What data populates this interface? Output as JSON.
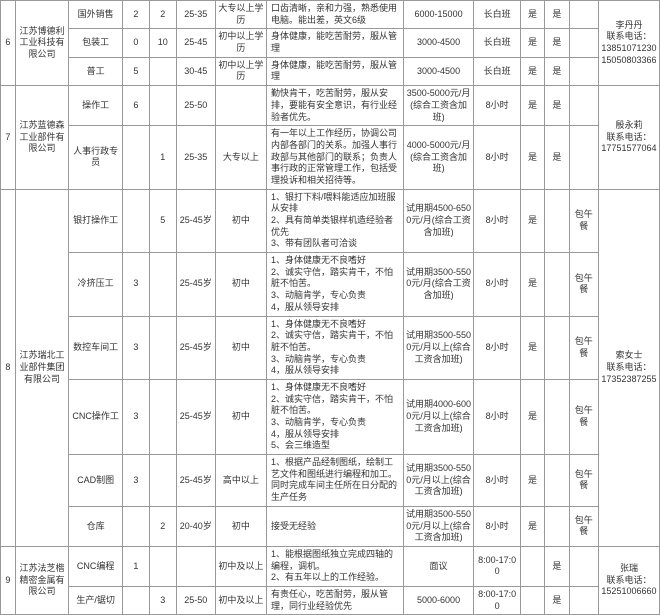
{
  "colors": {
    "border": "#999999",
    "bg": "#ffffff",
    "text": "#333333"
  },
  "companies": [
    {
      "idx": "6",
      "name": "江苏博德利工业科技有限公司",
      "contact": "李丹丹\n联系电话：\n13851071230\n15050803366",
      "rows": [
        {
          "job": "国外销售",
          "n1": "2",
          "n2": "2",
          "age": "25-35",
          "edu": "大专以上学历",
          "req": "口齿清晰，亲和力强，熟悉使用电脑。能出差，英文6级",
          "sal": "6000-15000",
          "shift": "长白班",
          "y1": "是",
          "y2": "是"
        },
        {
          "job": "包装工",
          "n1": "0",
          "n2": "10",
          "age": "25-45",
          "edu": "初中以上学历",
          "req": "身体健康，能吃苦耐劳，服从管理",
          "sal": "3000-4500",
          "shift": "长白班",
          "y1": "是",
          "y2": "是"
        },
        {
          "job": "普工",
          "n1": "5",
          "n2": "",
          "age": "30-45",
          "edu": "初中以上学历",
          "req": "身体健康，能吃苦耐劳，服从管理",
          "sal": "3000-4500",
          "shift": "长白班",
          "y1": "是",
          "y2": "是"
        }
      ]
    },
    {
      "idx": "7",
      "name": "江苏蓝德森工业部件有限公司",
      "contact": "殷永莉\n联系电话：\n17751577064",
      "rows": [
        {
          "job": "操作工",
          "n1": "6",
          "n2": "",
          "age": "25-50",
          "edu": "",
          "req": "勤快肯干，吃苦耐劳，服从安排，要能有安全意识，有行业经验者优先。",
          "sal": "3500-5000元/月(综合工资含加班)",
          "shift": "8小时",
          "y1": "是",
          "y2": "是"
        },
        {
          "job": "人事行政专员",
          "n1": "",
          "n2": "1",
          "age": "25-35",
          "edu": "大专以上",
          "req": "有一年以上工作经历，协调公司内部各部门的关系。加强人事行政部与其他部门的联系；负责人事行政的正常管理工作，包括受理投诉和相关招待等。",
          "sal": "4000-5000元/月(综合工资含加班)",
          "shift": "8小时",
          "y1": "是",
          "y2": "是"
        }
      ]
    },
    {
      "idx": "8",
      "name": "江苏瑞北工业部件集团有限公司",
      "contact": "索女士\n联系电话：\n17352387255",
      "rows": [
        {
          "job": "银打操作工",
          "n1": "",
          "n2": "5",
          "age": "25-45岁",
          "edu": "初中",
          "req": "1、银打下料/喂料能适应加班服从安排\n2、具有简单类银样机造经验者优先\n3、带有团队者可洽谈",
          "sal": "试用期4500-6500元/月(综合工资含加班)",
          "shift": "8小时",
          "y1": "是",
          "y2": "",
          "y3": "包午餐"
        },
        {
          "job": "冷挤压工",
          "n1": "3",
          "n2": "",
          "age": "25-45岁",
          "edu": "初中",
          "req": "1、身体健康无不良嗜好\n2、诚实守信，踏实肯干，不怕脏不怕苦。\n3、动脑肯学，专心负责\n4，服从领导安排",
          "sal": "试用期3500-5500元/月(综合工资含加班)",
          "shift": "8小时",
          "y1": "是",
          "y2": "",
          "y3": "包午餐"
        },
        {
          "job": "数控车间工",
          "n1": "3",
          "n2": "",
          "age": "25-45岁",
          "edu": "初中",
          "req": "1、身体健康无不良嗜好\n2、诚实守信，踏实肯干，不怕脏不怕苦。\n3、动脑肯学，专心负责\n4，服从领导安排",
          "sal": "试用期3500-5500元/月以上(综合工资含加班)",
          "shift": "8小时",
          "y1": "是",
          "y2": "",
          "y3": "包午餐"
        },
        {
          "job": "CNC操作工",
          "n1": "3",
          "n2": "",
          "age": "25-45岁",
          "edu": "初中",
          "req": "1、身体健康无不良嗜好\n2、诚实守信，踏实肯干，不怕脏不怕苦。\n3、动脑肯学，专心负责\n4，服从领导安排\n5、会三维造型",
          "sal": "试用期4000-6000元/月以上(综合工资含加班)",
          "shift": "8小时",
          "y1": "是",
          "y2": "",
          "y3": "包午餐"
        },
        {
          "job": "CAD制图",
          "n1": "3",
          "n2": "",
          "age": "25-45岁",
          "edu": "高中以上",
          "req": "1、根据产品经制图纸，绘制工艺文件和图纸进行编程和加工。同时完成车间主任所在日分配的生产任务",
          "sal": "试用期3500-5500元/月以上(综合工资含加班)",
          "shift": "8小时",
          "y1": "是",
          "y2": "",
          "y3": "包午餐"
        },
        {
          "job": "仓库",
          "n1": "",
          "n2": "2",
          "age": "20-40岁",
          "edu": "初中",
          "req": "接受无经验",
          "sal": "试用期3500-5500元/月以上(综合工资含加班)",
          "shift": "8小时",
          "y1": "是",
          "y2": "",
          "y3": "包午餐"
        }
      ]
    },
    {
      "idx": "9",
      "name": "江苏法芝楷精密金属有限公司",
      "contact": "张瑞\n联系电话：\n15251006660",
      "rows": [
        {
          "job": "CNC编程",
          "n1": "1",
          "n2": "",
          "age": "",
          "edu": "初中及以上",
          "req": "1、能根据图纸独立完成四轴的编程，调机。\n2、有五年以上的工作经验。",
          "sal": "面议",
          "shift": "8:00-17:00",
          "y1": "",
          "y2": "是",
          "y3": ""
        },
        {
          "job": "生产/锯切",
          "n1": "",
          "n2": "3",
          "age": "25-50",
          "edu": "初中及以上",
          "req": "有责任心，吃苦耐劳，服从管理，同行业经验优先",
          "sal": "5000-6000",
          "shift": "8:00-17:00",
          "y1": "",
          "y2": "是",
          "y3": ""
        }
      ]
    }
  ]
}
